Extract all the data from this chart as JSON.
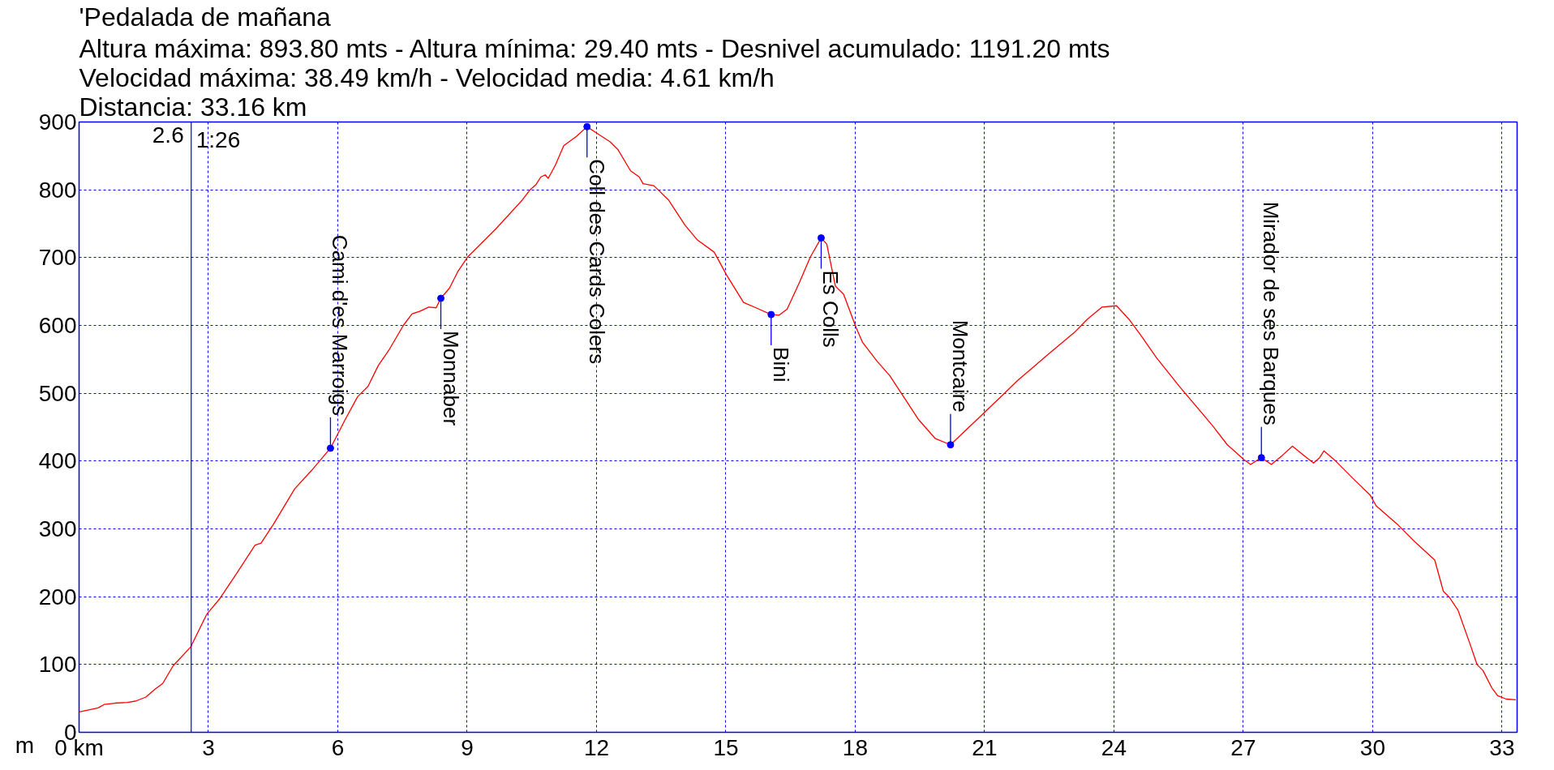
{
  "chart_data": {
    "type": "line",
    "title": "'Pedalada de mañana",
    "subtitle": "Altura máxima: 893.80 mts - Altura mínima: 29.40 mts - Desnivel acumulado: 1191.20 mts\nVelocidad máxima: 38.49 km/h - Velocidad media: 4.61 km/h\nDistancia: 33.16 km",
    "ylabel": "m",
    "x": [
      0,
      0.29,
      0.44,
      0.58,
      0.83,
      1.12,
      1.31,
      1.55,
      1.75,
      1.94,
      2.18,
      2.59,
      2.96,
      3.25,
      3.64,
      4.08,
      4.22,
      4.51,
      5.0,
      5.39,
      5.83,
      6.17,
      6.46,
      6.7,
      6.94,
      7.18,
      7.52,
      7.72,
      7.91,
      8.11,
      8.28,
      8.39,
      8.59,
      8.79,
      9.0,
      9.66,
      10.28,
      10.46,
      10.6,
      10.71,
      10.81,
      10.88,
      10.95,
      11.05,
      11.24,
      11.54,
      11.78,
      12.02,
      12.31,
      12.5,
      12.79,
      12.99,
      13.08,
      13.33,
      13.67,
      14.05,
      14.34,
      14.73,
      15.02,
      15.41,
      15.7,
      16.05,
      16.23,
      16.42,
      16.71,
      16.96,
      17.21,
      17.34,
      17.54,
      17.73,
      18.02,
      18.17,
      18.51,
      18.8,
      19.09,
      19.47,
      19.86,
      20.21,
      20.97,
      21.48,
      21.77,
      22.45,
      23.09,
      23.38,
      23.72,
      24.06,
      24.35,
      24.64,
      24.98,
      25.52,
      26.29,
      26.63,
      27.02,
      27.17,
      27.42,
      27.65,
      27.9,
      28.14,
      28.43,
      28.63,
      28.77,
      28.87,
      29.11,
      29.55,
      29.94,
      30.08,
      30.57,
      30.96,
      31.44,
      31.64,
      31.78,
      31.98,
      32.27,
      32.42,
      32.56,
      32.76,
      32.9,
      33.1,
      33.32
    ],
    "series": [
      {
        "color": "#ff0000",
        "values": [
          30,
          34,
          36,
          41,
          43,
          44,
          46,
          52,
          63,
          72,
          98,
          126,
          174,
          196,
          233,
          276,
          279,
          307,
          359,
          386,
          419,
          461,
          495,
          510,
          541,
          563,
          600,
          617,
          621,
          627,
          626,
          640,
          655,
          680,
          700,
          742,
          785,
          800,
          808,
          819,
          822,
          817,
          825,
          837,
          865,
          879,
          893,
          883,
          871,
          859,
          828,
          819,
          809,
          806,
          785,
          748,
          726,
          708,
          674,
          634,
          626,
          616,
          615,
          624,
          664,
          701,
          729,
          720,
          658,
          646,
          597,
          575,
          547,
          526,
          498,
          461,
          433,
          424,
          470,
          501,
          519,
          556,
          590,
          609,
          627,
          629,
          609,
          584,
          553,
          510,
          452,
          424,
          402,
          395,
          405,
          395,
          408,
          422,
          407,
          397,
          405,
          415,
          402,
          374,
          350,
          334,
          307,
          282,
          254,
          208,
          199,
          180,
          128,
          100,
          91,
          66,
          54,
          49,
          48
        ]
      }
    ],
    "xlim": [
      0,
      33.35
    ],
    "ylim": [
      0,
      900
    ],
    "xticks": [
      {
        "value": 0,
        "label": "0 km"
      },
      3,
      6,
      9,
      12,
      15,
      18,
      21,
      24,
      27,
      30,
      33
    ],
    "yticks": [
      0,
      100,
      200,
      300,
      400,
      500,
      600,
      700,
      800,
      900
    ],
    "grid": true,
    "line_style": "solid",
    "ref_lines": [
      {
        "axis": "x",
        "value": 2.6,
        "label": "2.6",
        "color": "#0000ff"
      }
    ],
    "annotations": [
      "1:26",
      {
        "text": "Cami d'es Marroigs",
        "x": 5.83,
        "y": 419
      },
      {
        "text": "Monnaber",
        "x": 8.39,
        "y": 640
      },
      {
        "text": "Coll des Cards Colers",
        "x": 11.78,
        "y": 893
      },
      {
        "text": "Bini",
        "x": 16.05,
        "y": 616
      },
      {
        "text": "Es Colls",
        "x": 17.21,
        "y": 729
      },
      {
        "text": "Montcaire",
        "x": 20.21,
        "y": 424
      },
      {
        "text": "Mirador de ses Barques",
        "x": 27.42,
        "y": 405
      }
    ]
  }
}
